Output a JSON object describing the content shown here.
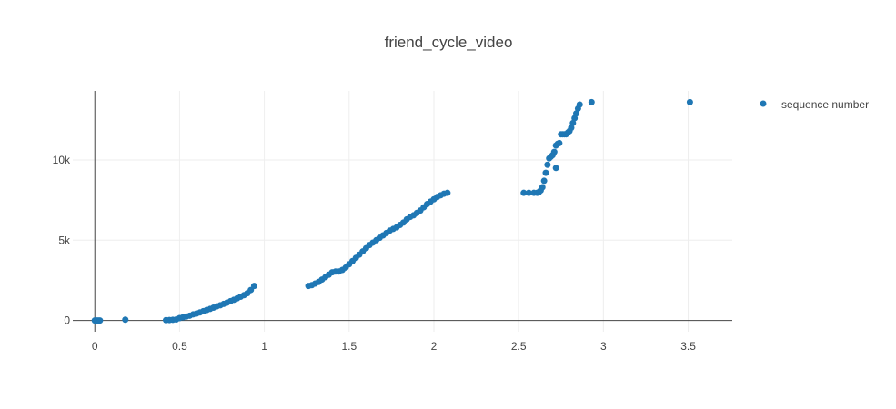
{
  "chart_data": {
    "type": "scatter",
    "title": "friend_cycle_video",
    "xlabel": "",
    "ylabel": "",
    "xlim": [
      -0.13,
      3.76
    ],
    "ylim": [
      -700,
      14300
    ],
    "x_ticks": [
      0,
      0.5,
      1,
      1.5,
      2,
      2.5,
      3,
      3.5
    ],
    "x_tick_labels": [
      "0",
      "0.5",
      "1",
      "1.5",
      "2",
      "2.5",
      "3",
      "3.5"
    ],
    "y_ticks": [
      0,
      5000,
      10000
    ],
    "y_tick_labels": [
      "0",
      "5k",
      "10k"
    ],
    "grid": true,
    "legend": "top-right",
    "series": [
      {
        "name": "sequence number",
        "color": "#1f77b4",
        "points": [
          [
            0.0,
            0
          ],
          [
            0.01,
            0
          ],
          [
            0.02,
            0
          ],
          [
            0.03,
            0
          ],
          [
            0.18,
            50
          ],
          [
            0.42,
            20
          ],
          [
            0.44,
            30
          ],
          [
            0.46,
            40
          ],
          [
            0.48,
            60
          ],
          [
            0.5,
            150
          ],
          [
            0.52,
            200
          ],
          [
            0.54,
            250
          ],
          [
            0.56,
            300
          ],
          [
            0.58,
            380
          ],
          [
            0.6,
            430
          ],
          [
            0.62,
            500
          ],
          [
            0.64,
            580
          ],
          [
            0.66,
            650
          ],
          [
            0.68,
            720
          ],
          [
            0.7,
            800
          ],
          [
            0.72,
            880
          ],
          [
            0.74,
            950
          ],
          [
            0.76,
            1030
          ],
          [
            0.78,
            1110
          ],
          [
            0.8,
            1200
          ],
          [
            0.82,
            1290
          ],
          [
            0.84,
            1380
          ],
          [
            0.86,
            1480
          ],
          [
            0.88,
            1580
          ],
          [
            0.9,
            1700
          ],
          [
            0.92,
            1900
          ],
          [
            0.94,
            2150
          ],
          [
            1.26,
            2150
          ],
          [
            1.28,
            2200
          ],
          [
            1.3,
            2300
          ],
          [
            1.32,
            2400
          ],
          [
            1.34,
            2550
          ],
          [
            1.36,
            2700
          ],
          [
            1.38,
            2850
          ],
          [
            1.4,
            3000
          ],
          [
            1.42,
            3050
          ],
          [
            1.44,
            3050
          ],
          [
            1.46,
            3150
          ],
          [
            1.48,
            3300
          ],
          [
            1.5,
            3500
          ],
          [
            1.52,
            3700
          ],
          [
            1.54,
            3900
          ],
          [
            1.56,
            4100
          ],
          [
            1.58,
            4300
          ],
          [
            1.6,
            4500
          ],
          [
            1.62,
            4700
          ],
          [
            1.64,
            4850
          ],
          [
            1.66,
            5000
          ],
          [
            1.68,
            5150
          ],
          [
            1.7,
            5300
          ],
          [
            1.72,
            5450
          ],
          [
            1.74,
            5600
          ],
          [
            1.76,
            5700
          ],
          [
            1.78,
            5800
          ],
          [
            1.8,
            5950
          ],
          [
            1.82,
            6100
          ],
          [
            1.84,
            6300
          ],
          [
            1.86,
            6450
          ],
          [
            1.88,
            6550
          ],
          [
            1.9,
            6700
          ],
          [
            1.92,
            6850
          ],
          [
            1.94,
            7050
          ],
          [
            1.96,
            7250
          ],
          [
            1.98,
            7400
          ],
          [
            2.0,
            7550
          ],
          [
            2.02,
            7700
          ],
          [
            2.04,
            7800
          ],
          [
            2.06,
            7900
          ],
          [
            2.08,
            7950
          ],
          [
            2.53,
            7950
          ],
          [
            2.56,
            7950
          ],
          [
            2.59,
            7950
          ],
          [
            2.61,
            7950
          ],
          [
            2.62,
            8000
          ],
          [
            2.63,
            8100
          ],
          [
            2.64,
            8300
          ],
          [
            2.65,
            8700
          ],
          [
            2.66,
            9200
          ],
          [
            2.67,
            9700
          ],
          [
            2.68,
            10100
          ],
          [
            2.69,
            10200
          ],
          [
            2.7,
            10300
          ],
          [
            2.71,
            10500
          ],
          [
            2.72,
            9500
          ],
          [
            2.72,
            10900
          ],
          [
            2.73,
            11000
          ],
          [
            2.74,
            11050
          ],
          [
            2.75,
            11600
          ],
          [
            2.76,
            11600
          ],
          [
            2.77,
            11600
          ],
          [
            2.78,
            11600
          ],
          [
            2.79,
            11700
          ],
          [
            2.8,
            11800
          ],
          [
            2.81,
            12000
          ],
          [
            2.82,
            12300
          ],
          [
            2.83,
            12600
          ],
          [
            2.84,
            12900
          ],
          [
            2.85,
            13200
          ],
          [
            2.86,
            13450
          ],
          [
            2.93,
            13600
          ],
          [
            3.51,
            13600
          ]
        ]
      }
    ]
  }
}
